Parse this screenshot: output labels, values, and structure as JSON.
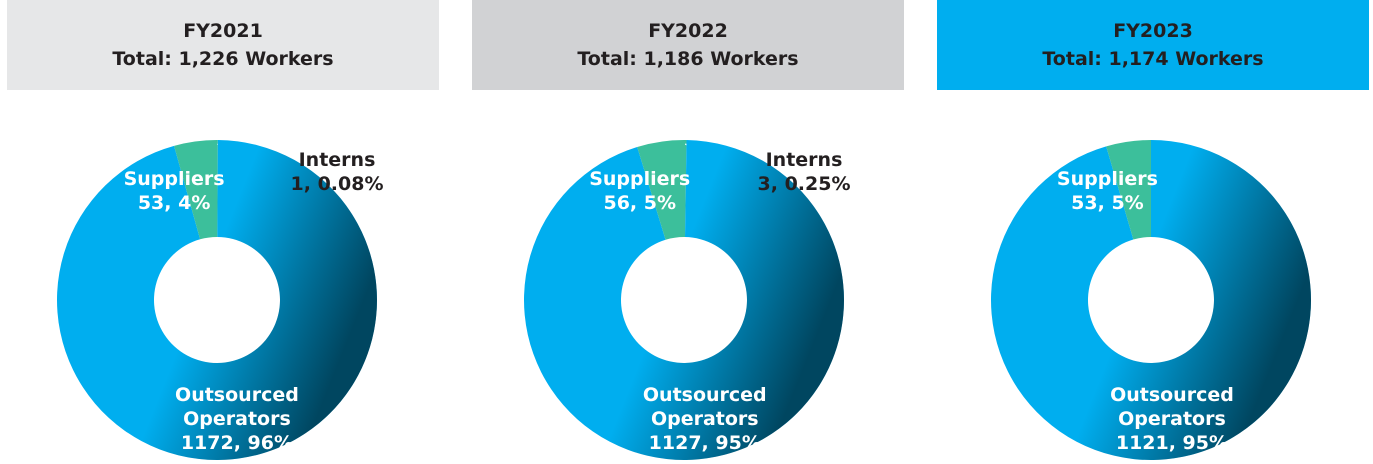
{
  "chart_data": [
    {
      "type": "pie",
      "title": "FY2021",
      "subtitle": "Total: 1,226 Workers",
      "title_background": "#e6e7e8",
      "categories": [
        "Interns",
        "Outsourced Operators",
        "Suppliers"
      ],
      "values": [
        1,
        1172,
        53
      ],
      "value_labels": [
        "1, 0.08%",
        "1172, 96%",
        "53, 4%"
      ],
      "colors": [
        "#3cbf9b",
        "#00aeef",
        "#3cbf9b"
      ]
    },
    {
      "type": "pie",
      "title": "FY2022",
      "subtitle": "Total: 1,186 Workers",
      "title_background": "#d1d2d4",
      "categories": [
        "Interns",
        "Outsourced Operators",
        "Suppliers"
      ],
      "values": [
        3,
        1127,
        56
      ],
      "value_labels": [
        "3, 0.25%",
        "1127, 95%",
        "56, 5%"
      ],
      "colors": [
        "#3cbf9b",
        "#00aeef",
        "#3cbf9b"
      ]
    },
    {
      "type": "pie",
      "title": "FY2023",
      "subtitle": "Total: 1,174 Workers",
      "title_background": "#00aeef",
      "categories": [
        "Outsourced Operators",
        "Suppliers"
      ],
      "values": [
        1121,
        53
      ],
      "value_labels": [
        "1121, 95%",
        "53, 5%"
      ],
      "colors": [
        "#00aeef",
        "#3cbf9b"
      ]
    }
  ]
}
